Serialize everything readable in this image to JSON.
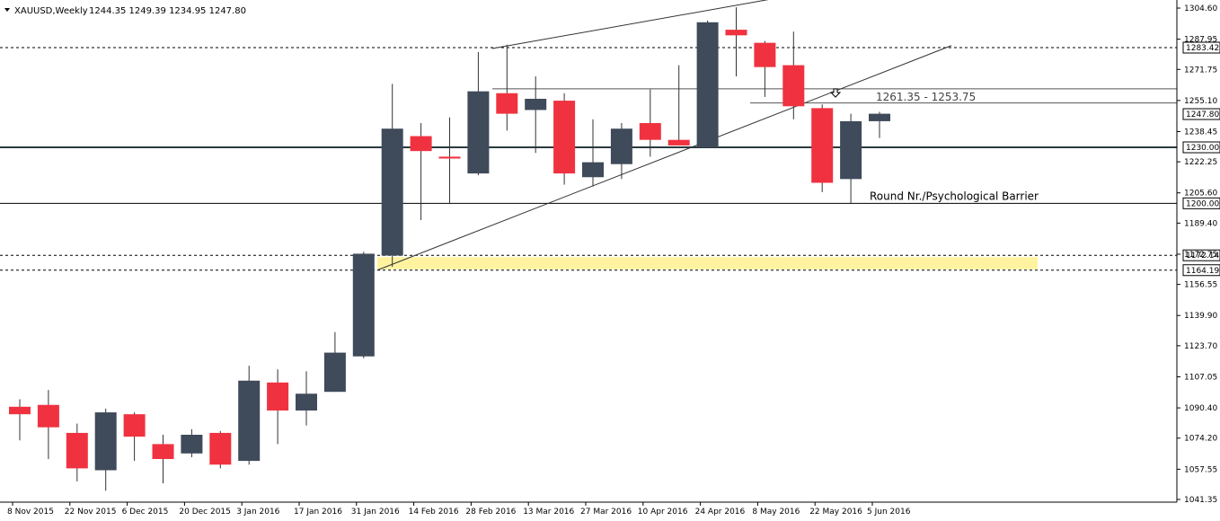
{
  "header": {
    "symbol": "XAUUSD,Weekly",
    "ohlc": "1244.35 1249.39 1234.95 1247.80"
  },
  "chart_data": {
    "type": "candlestick",
    "symbol": "XAUUSD",
    "timeframe": "Weekly",
    "ylim": [
      1040,
      1315
    ],
    "price_ticks": [
      "1304.60",
      "1287.95",
      "1271.75",
      "1255.10",
      "1238.45",
      "1222.25",
      "1205.60",
      "1189.40",
      "1172.75",
      "1156.55",
      "1139.90",
      "1123.70",
      "1107.05",
      "1090.40",
      "1074.20",
      "1057.55",
      "1041.35"
    ],
    "date_labels": [
      "8 Nov 2015",
      "22 Nov 2015",
      "6 Dec 2015",
      "20 Dec 2015",
      "3 Jan 2016",
      "17 Jan 2016",
      "31 Jan 2016",
      "14 Feb 2016",
      "28 Feb 2016",
      "13 Mar 2016",
      "27 Mar 2016",
      "10 Apr 2016",
      "24 Apr 2016",
      "8 May 2016",
      "22 May 2016",
      "5 Jun 2016"
    ],
    "candles": [
      {
        "o": 1091,
        "h": 1095,
        "l": 1073,
        "c": 1087
      },
      {
        "o": 1092,
        "h": 1100,
        "l": 1063,
        "c": 1080
      },
      {
        "o": 1077,
        "h": 1082,
        "l": 1051,
        "c": 1058
      },
      {
        "o": 1057,
        "h": 1090,
        "l": 1046,
        "c": 1088
      },
      {
        "o": 1087,
        "h": 1088,
        "l": 1062,
        "c": 1075
      },
      {
        "o": 1071,
        "h": 1076,
        "l": 1050,
        "c": 1063
      },
      {
        "o": 1066,
        "h": 1079,
        "l": 1064,
        "c": 1076
      },
      {
        "o": 1077,
        "h": 1078,
        "l": 1058,
        "c": 1060
      },
      {
        "o": 1062,
        "h": 1113,
        "l": 1060,
        "c": 1105
      },
      {
        "o": 1104,
        "h": 1111,
        "l": 1071,
        "c": 1089
      },
      {
        "o": 1089,
        "h": 1110,
        "l": 1081,
        "c": 1098
      },
      {
        "o": 1099,
        "h": 1131,
        "l": 1099,
        "c": 1120
      },
      {
        "o": 1118,
        "h": 1174,
        "l": 1117,
        "c": 1173
      },
      {
        "o": 1172,
        "h": 1264,
        "l": 1166,
        "c": 1240
      },
      {
        "o": 1236,
        "h": 1243,
        "l": 1191,
        "c": 1228
      },
      {
        "o": 1225,
        "h": 1246,
        "l": 1200,
        "c": 1224
      },
      {
        "o": 1216,
        "h": 1281,
        "l": 1215,
        "c": 1260
      },
      {
        "o": 1259,
        "h": 1285,
        "l": 1239,
        "c": 1248
      },
      {
        "o": 1250,
        "h": 1268,
        "l": 1227,
        "c": 1256
      },
      {
        "o": 1255,
        "h": 1259,
        "l": 1210,
        "c": 1216
      },
      {
        "o": 1214,
        "h": 1245,
        "l": 1209,
        "c": 1222
      },
      {
        "o": 1221,
        "h": 1243,
        "l": 1213,
        "c": 1240
      },
      {
        "o": 1243,
        "h": 1261,
        "l": 1225,
        "c": 1234
      },
      {
        "o": 1234,
        "h": 1274,
        "l": 1232,
        "c": 1231
      },
      {
        "o": 1230,
        "h": 1298,
        "l": 1230,
        "c": 1297
      },
      {
        "o": 1293,
        "h": 1305,
        "l": 1268,
        "c": 1290
      },
      {
        "o": 1286,
        "h": 1287,
        "l": 1257,
        "c": 1273
      },
      {
        "o": 1274,
        "h": 1292,
        "l": 1245,
        "c": 1252
      },
      {
        "o": 1251,
        "h": 1253,
        "l": 1206,
        "c": 1211
      },
      {
        "o": 1213,
        "h": 1248,
        "l": 1200,
        "c": 1244
      },
      {
        "o": 1244,
        "h": 1249,
        "l": 1235,
        "c": 1248
      }
    ],
    "levels": [
      {
        "value": 1283.42,
        "label": "1283.42",
        "style": "dashed",
        "color": "#000000"
      },
      {
        "value": 1247.8,
        "label": "1247.80",
        "style": "none",
        "color": "#000000"
      },
      {
        "value": 1230.0,
        "label": "1230.00",
        "style": "solid-thick",
        "color": "#2b3a3f"
      },
      {
        "value": 1200.0,
        "label": "1200.00",
        "style": "solid",
        "color": "#000000"
      },
      {
        "value": 1172.14,
        "label": "1172.14",
        "style": "dashed",
        "color": "#000000"
      },
      {
        "value": 1164.19,
        "label": "1164.19",
        "style": "dashed",
        "color": "#000000"
      }
    ],
    "annotations": {
      "round_number": "Round Nr./Psychological Barrier",
      "range": "1261.35 - 1253.75"
    },
    "colors": {
      "bull": "#3f4a5a",
      "bear": "#f03240",
      "support_zone": "#fff3a0",
      "grid": "#dcdcdc"
    }
  }
}
